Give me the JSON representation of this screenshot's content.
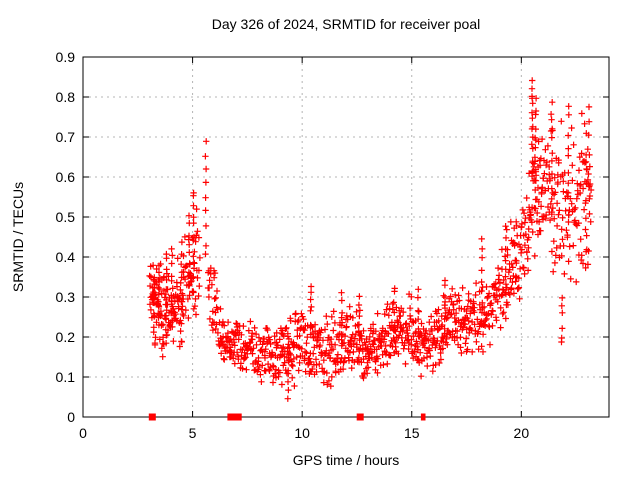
{
  "title": "Day 326 of 2024, SRMTID for receiver poal",
  "xlabel": "GPS time / hours",
  "ylabel": "SRMTID / TECUs",
  "colors": {
    "points": "#ff0000",
    "grid": "#b4b4b4",
    "axis": "#000000",
    "background": "#ffffff",
    "text": "#000000"
  },
  "chart_data": {
    "type": "scatter",
    "marker": "plus",
    "marker_color": "#ff0000",
    "title": "Day 326 of 2024, SRMTID for receiver poal",
    "xlabel": "GPS time / hours",
    "ylabel": "SRMTID / TECUs",
    "xlim": [
      0,
      24
    ],
    "ylim": [
      0,
      0.9
    ],
    "xticks": [
      [
        0,
        "0"
      ],
      [
        5,
        "5"
      ],
      [
        10,
        "10"
      ],
      [
        15,
        "15"
      ],
      [
        20,
        "20"
      ]
    ],
    "yticks": [
      [
        0,
        "0"
      ],
      [
        0.1,
        "0.1"
      ],
      [
        0.2,
        "0.2"
      ],
      [
        0.3,
        "0.3"
      ],
      [
        0.4,
        "0.4"
      ],
      [
        0.5,
        "0.5"
      ],
      [
        0.6,
        "0.6"
      ],
      [
        0.7,
        "0.7"
      ],
      [
        0.8,
        "0.8"
      ],
      [
        0.9,
        "0.9"
      ]
    ],
    "grid": true,
    "legend": "none",
    "seed": 326,
    "summary": "SRMTID values start near hour 3.05 around 0.17-0.42, spike to 0.685 at hour 5.6, settle in a dense 0.1-0.3 band from hours 7-18, then rise to a peak of about 0.84 near hour 20.5 and end near hour 23.2 between 0.33-0.78.",
    "envelope_segments": [
      {
        "t0": 3.05,
        "t1": 3.6,
        "c0": 0.28,
        "c1": 0.28,
        "sd": 0.05,
        "min": 0.16,
        "max": 0.4,
        "rate": 80
      },
      {
        "t0": 3.6,
        "t1": 4.6,
        "c0": 0.27,
        "c1": 0.29,
        "sd": 0.055,
        "min": 0.15,
        "max": 0.44,
        "rate": 75
      },
      {
        "t0": 4.6,
        "t1": 5.35,
        "c0": 0.34,
        "c1": 0.38,
        "sd": 0.06,
        "min": 0.22,
        "max": 0.57,
        "rate": 55
      },
      {
        "t0": 5.7,
        "t1": 6.3,
        "c0": 0.32,
        "c1": 0.24,
        "sd": 0.05,
        "min": 0.17,
        "max": 0.46,
        "rate": 50
      },
      {
        "t0": 6.3,
        "t1": 7.1,
        "c0": 0.2,
        "c1": 0.18,
        "sd": 0.03,
        "min": 0.11,
        "max": 0.27,
        "rate": 65
      },
      {
        "t0": 7.1,
        "t1": 8.3,
        "c0": 0.16,
        "c1": 0.155,
        "sd": 0.03,
        "min": 0.06,
        "max": 0.24,
        "rate": 55
      },
      {
        "t0": 8.3,
        "t1": 13.0,
        "c0": 0.165,
        "c1": 0.175,
        "sd": 0.04,
        "min": 0.05,
        "max": 0.3,
        "rate": 62
      },
      {
        "t0": 13.0,
        "t1": 16.0,
        "c0": 0.185,
        "c1": 0.2,
        "sd": 0.04,
        "min": 0.1,
        "max": 0.32,
        "rate": 62
      },
      {
        "t0": 16.0,
        "t1": 17.5,
        "c0": 0.21,
        "c1": 0.23,
        "sd": 0.04,
        "min": 0.13,
        "max": 0.36,
        "rate": 62
      },
      {
        "t0": 17.5,
        "t1": 18.7,
        "c0": 0.24,
        "c1": 0.27,
        "sd": 0.045,
        "min": 0.16,
        "max": 0.4,
        "rate": 62
      },
      {
        "t0": 18.7,
        "t1": 19.8,
        "c0": 0.29,
        "c1": 0.37,
        "sd": 0.05,
        "min": 0.2,
        "max": 0.5,
        "rate": 60
      },
      {
        "t0": 19.8,
        "t1": 20.35,
        "c0": 0.4,
        "c1": 0.47,
        "sd": 0.06,
        "min": 0.27,
        "max": 0.64,
        "rate": 62
      },
      {
        "t0": 20.35,
        "t1": 20.95,
        "c0": 0.55,
        "c1": 0.58,
        "sd": 0.09,
        "min": 0.33,
        "max": 0.83,
        "rate": 68
      },
      {
        "t0": 20.95,
        "t1": 21.7,
        "c0": 0.54,
        "c1": 0.5,
        "sd": 0.08,
        "min": 0.28,
        "max": 0.78,
        "rate": 62
      },
      {
        "t0": 21.7,
        "t1": 22.45,
        "c0": 0.5,
        "c1": 0.53,
        "sd": 0.09,
        "min": 0.18,
        "max": 0.78,
        "rate": 56
      },
      {
        "t0": 22.45,
        "t1": 23.2,
        "c0": 0.55,
        "c1": 0.55,
        "sd": 0.085,
        "min": 0.33,
        "max": 0.78,
        "rate": 56
      }
    ],
    "spike_columns": [
      {
        "t": 3.25,
        "ymin": 0.22,
        "ymax": 0.35,
        "n": 12
      },
      {
        "t": 3.45,
        "ymin": 0.24,
        "ymax": 0.37,
        "n": 10
      },
      {
        "t": 3.8,
        "ymin": 0.2,
        "ymax": 0.41,
        "n": 11
      },
      {
        "t": 4.05,
        "ymin": 0.22,
        "ymax": 0.42,
        "n": 10
      },
      {
        "t": 4.5,
        "ymin": 0.24,
        "ymax": 0.44,
        "n": 9
      },
      {
        "t": 4.85,
        "ymin": 0.3,
        "ymax": 0.5,
        "n": 10
      },
      {
        "t": 5.05,
        "ymin": 0.32,
        "ymax": 0.57,
        "n": 12
      },
      {
        "t": 5.6,
        "ymin": 0.4,
        "ymax": 0.685,
        "n": 9
      },
      {
        "t": 9.35,
        "ymin": 0.055,
        "ymax": 0.18,
        "n": 7
      },
      {
        "t": 10.4,
        "ymin": 0.2,
        "ymax": 0.33,
        "n": 8
      },
      {
        "t": 11.8,
        "ymin": 0.17,
        "ymax": 0.31,
        "n": 8
      },
      {
        "t": 12.6,
        "ymin": 0.14,
        "ymax": 0.3,
        "n": 8
      },
      {
        "t": 14.2,
        "ymin": 0.17,
        "ymax": 0.33,
        "n": 8
      },
      {
        "t": 15.3,
        "ymin": 0.17,
        "ymax": 0.32,
        "n": 7
      },
      {
        "t": 16.5,
        "ymin": 0.2,
        "ymax": 0.35,
        "n": 8
      },
      {
        "t": 18.2,
        "ymin": 0.24,
        "ymax": 0.44,
        "n": 9
      },
      {
        "t": 19.3,
        "ymin": 0.28,
        "ymax": 0.47,
        "n": 9
      },
      {
        "t": 20.5,
        "ymin": 0.6,
        "ymax": 0.84,
        "n": 16
      },
      {
        "t": 20.65,
        "ymin": 0.52,
        "ymax": 0.8,
        "n": 12
      },
      {
        "t": 21.4,
        "ymin": 0.52,
        "ymax": 0.78,
        "n": 10
      },
      {
        "t": 21.85,
        "ymin": 0.18,
        "ymax": 0.3,
        "n": 6
      },
      {
        "t": 22.15,
        "ymin": 0.48,
        "ymax": 0.78,
        "n": 10
      },
      {
        "t": 22.95,
        "ymin": 0.38,
        "ymax": 0.7,
        "n": 9
      },
      {
        "t": 23.1,
        "ymin": 0.5,
        "ymax": 0.78,
        "n": 8
      }
    ],
    "zero_axis_markers": {
      "square_hours": [
        3.16,
        6.75,
        6.95,
        7.08,
        12.65
      ],
      "thin_hours": [
        15.47,
        15.57
      ],
      "value": 0
    }
  }
}
